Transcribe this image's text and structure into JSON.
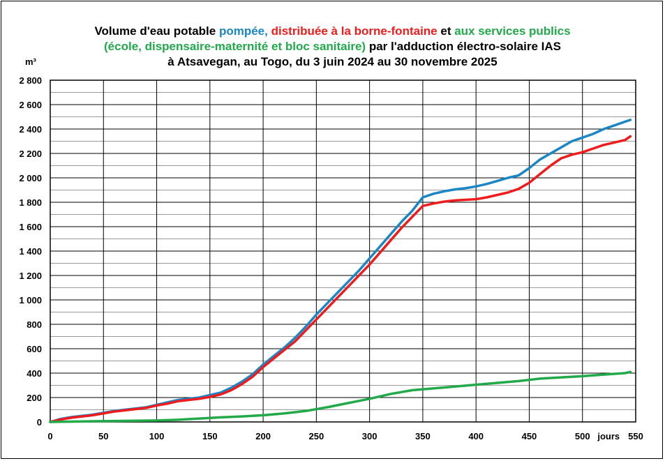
{
  "chart_data": {
    "type": "line",
    "title": {
      "line1_prefix": "Volume d'eau potable ",
      "line1_pumped": "pompée,",
      "line1_gap": " ",
      "line1_distributed": "distribuée à la borne-fontaine",
      "line1_and": " et ",
      "line1_public": "aux services publics",
      "line2_public": "(école, dispensaire-maternité et bloc sanitaire)",
      "line2_suffix": " par l'adduction électro-solaire IAS",
      "line3": "à Atsavegan, au Togo, du 3 juin 2024 au 30 novembre 2025"
    },
    "ylabel": "m³",
    "xlabel": "jours",
    "xlim": [
      0,
      550
    ],
    "ylim": [
      0,
      2800
    ],
    "x_ticks": [
      0,
      50,
      100,
      150,
      200,
      250,
      300,
      350,
      400,
      450,
      500,
      550
    ],
    "x_tick_labels": [
      "0",
      "50",
      "100",
      "150",
      "200",
      "250",
      "300",
      "350",
      "400",
      "450",
      "500",
      "550"
    ],
    "y_ticks": [
      0,
      200,
      400,
      600,
      800,
      1000,
      1200,
      1400,
      1600,
      1800,
      2000,
      2200,
      2400,
      2600,
      2800
    ],
    "y_tick_labels": [
      "0",
      "200",
      "400",
      "600",
      "800",
      "1 000",
      "1 200",
      "1 400",
      "1 600",
      "1 800",
      "2 000",
      "2 200",
      "2 400",
      "2 600",
      "2 800"
    ],
    "grid": true,
    "series": [
      {
        "color": "#1a86c6",
        "x": [
          0,
          10,
          20,
          30,
          40,
          50,
          60,
          70,
          80,
          90,
          100,
          110,
          120,
          130,
          140,
          150,
          160,
          170,
          180,
          190,
          200,
          210,
          220,
          230,
          240,
          250,
          260,
          270,
          280,
          290,
          300,
          310,
          320,
          330,
          340,
          350,
          360,
          370,
          380,
          390,
          400,
          410,
          420,
          430,
          440,
          450,
          460,
          470,
          480,
          490,
          500,
          510,
          520,
          530,
          540,
          545
        ],
        "y": [
          0,
          25,
          40,
          50,
          60,
          75,
          90,
          100,
          110,
          120,
          140,
          160,
          180,
          190,
          200,
          220,
          240,
          280,
          330,
          390,
          470,
          540,
          610,
          690,
          780,
          880,
          970,
          1060,
          1150,
          1240,
          1340,
          1440,
          1540,
          1640,
          1730,
          1840,
          1870,
          1890,
          1905,
          1915,
          1930,
          1950,
          1975,
          2000,
          2020,
          2080,
          2150,
          2200,
          2250,
          2300,
          2330,
          2360,
          2400,
          2430,
          2460,
          2475
        ]
      },
      {
        "color": "#ee1c1c",
        "x": [
          0,
          10,
          20,
          30,
          40,
          50,
          60,
          70,
          80,
          90,
          100,
          110,
          120,
          130,
          140,
          150,
          160,
          170,
          180,
          190,
          200,
          210,
          220,
          230,
          240,
          250,
          260,
          270,
          280,
          290,
          300,
          310,
          320,
          330,
          340,
          350,
          360,
          370,
          380,
          390,
          400,
          410,
          420,
          430,
          440,
          450,
          460,
          470,
          480,
          490,
          500,
          510,
          520,
          530,
          540,
          545
        ],
        "y": [
          0,
          20,
          35,
          45,
          55,
          70,
          85,
          95,
          105,
          115,
          135,
          150,
          170,
          180,
          190,
          205,
          225,
          260,
          310,
          370,
          450,
          520,
          590,
          660,
          750,
          840,
          930,
          1020,
          1110,
          1200,
          1290,
          1390,
          1490,
          1590,
          1680,
          1770,
          1790,
          1805,
          1815,
          1820,
          1825,
          1840,
          1860,
          1880,
          1910,
          1960,
          2030,
          2100,
          2160,
          2190,
          2210,
          2240,
          2270,
          2290,
          2310,
          2340
        ]
      },
      {
        "color": "#21a94a",
        "x": [
          0,
          20,
          40,
          60,
          80,
          100,
          120,
          140,
          160,
          180,
          200,
          220,
          240,
          260,
          280,
          300,
          320,
          340,
          360,
          380,
          400,
          420,
          440,
          460,
          480,
          500,
          520,
          540,
          545
        ],
        "y": [
          0,
          3,
          6,
          8,
          10,
          12,
          18,
          28,
          38,
          45,
          55,
          70,
          90,
          120,
          155,
          190,
          230,
          260,
          275,
          290,
          305,
          320,
          335,
          355,
          365,
          375,
          388,
          400,
          410
        ]
      }
    ]
  }
}
